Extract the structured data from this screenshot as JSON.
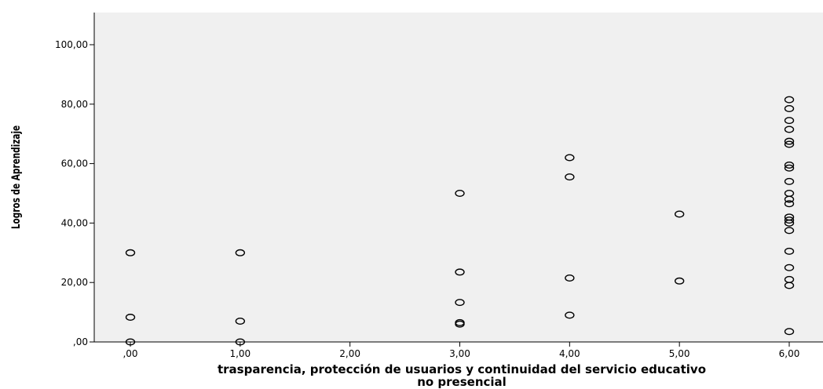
{
  "chart_data": {
    "type": "scatter",
    "title": "",
    "xlabel_line1": "trasparencia, protección de usuarios y continuidad del servicio educativo",
    "xlabel_line2": "no presencial",
    "ylabel": "Logros de Aprendizaje",
    "xlim": [
      -0.3,
      6.3
    ],
    "ylim": [
      0,
      110
    ],
    "x_ticks": [
      {
        "value": 0,
        "label": ",00"
      },
      {
        "value": 1,
        "label": "1,00"
      },
      {
        "value": 2,
        "label": "2,00"
      },
      {
        "value": 3,
        "label": "3,00"
      },
      {
        "value": 4,
        "label": "4,00"
      },
      {
        "value": 5,
        "label": "5,00"
      },
      {
        "value": 6,
        "label": "6,00"
      }
    ],
    "y_ticks": [
      {
        "value": 0,
        "label": ",00"
      },
      {
        "value": 20,
        "label": "20,00"
      },
      {
        "value": 40,
        "label": "40,00"
      },
      {
        "value": 60,
        "label": "60,00"
      },
      {
        "value": 80,
        "label": "80,00"
      },
      {
        "value": 100,
        "label": "100,00"
      }
    ],
    "grid": false,
    "background_color": "#f0f0f0",
    "marker_color": "#000000",
    "points": [
      {
        "x": 0,
        "y": 30
      },
      {
        "x": 0,
        "y": 8.3
      },
      {
        "x": 0,
        "y": 0
      },
      {
        "x": 1,
        "y": 30
      },
      {
        "x": 1,
        "y": 7
      },
      {
        "x": 1,
        "y": 0
      },
      {
        "x": 3,
        "y": 50
      },
      {
        "x": 3,
        "y": 23.5
      },
      {
        "x": 3,
        "y": 13.3
      },
      {
        "x": 3,
        "y": 6.5
      },
      {
        "x": 3,
        "y": 6
      },
      {
        "x": 4,
        "y": 62
      },
      {
        "x": 4,
        "y": 55.5
      },
      {
        "x": 4,
        "y": 21.5
      },
      {
        "x": 4,
        "y": 9
      },
      {
        "x": 5,
        "y": 43
      },
      {
        "x": 5,
        "y": 20.5
      },
      {
        "x": 6,
        "y": 81.5
      },
      {
        "x": 6,
        "y": 78.5
      },
      {
        "x": 6,
        "y": 74.5
      },
      {
        "x": 6,
        "y": 71.5
      },
      {
        "x": 6,
        "y": 67.5
      },
      {
        "x": 6,
        "y": 66.5
      },
      {
        "x": 6,
        "y": 59.5
      },
      {
        "x": 6,
        "y": 58.5
      },
      {
        "x": 6,
        "y": 54
      },
      {
        "x": 6,
        "y": 50
      },
      {
        "x": 6,
        "y": 48
      },
      {
        "x": 6,
        "y": 46.5
      },
      {
        "x": 6,
        "y": 42
      },
      {
        "x": 6,
        "y": 41
      },
      {
        "x": 6,
        "y": 40
      },
      {
        "x": 6,
        "y": 37.5
      },
      {
        "x": 6,
        "y": 30.5
      },
      {
        "x": 6,
        "y": 25
      },
      {
        "x": 6,
        "y": 21
      },
      {
        "x": 6,
        "y": 19
      },
      {
        "x": 6,
        "y": 3.5
      }
    ]
  }
}
